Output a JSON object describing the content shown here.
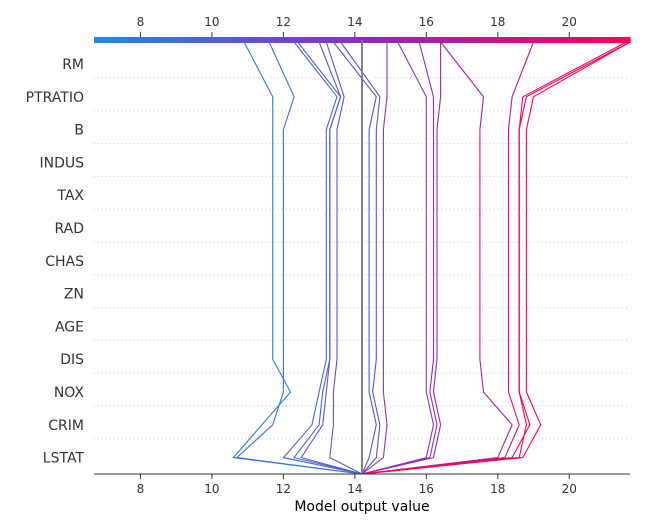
{
  "chart_data": {
    "type": "line",
    "chart_kind": "decision-plot",
    "xlabel": "Model output value",
    "xlim": [
      6.7,
      21.7
    ],
    "x_ticks": [
      8,
      10,
      12,
      14,
      16,
      18,
      20
    ],
    "base_value": 14.2,
    "features_top_to_bottom": [
      "RM",
      "PTRATIO",
      "B",
      "INDUS",
      "TAX",
      "RAD",
      "CHAS",
      "ZN",
      "AGE",
      "DIS",
      "NOX",
      "CRIM",
      "LSTAT"
    ],
    "color_scale": {
      "low": "#1e88e5",
      "mid": "#8d2bbf",
      "high": "#ff0052"
    },
    "grid": "dotted-horizontal",
    "line_color": "#808080",
    "series": [
      {
        "values": [
          14.2,
          10.6,
          11.4,
          12.2,
          11.7,
          11.7,
          11.7,
          11.7,
          11.7,
          11.7,
          11.7,
          11.7,
          11.7,
          10.9
        ]
      },
      {
        "values": [
          14.2,
          10.7,
          11.7,
          12.0,
          12.0,
          12.0,
          12.0,
          12.0,
          12.0,
          12.0,
          12.0,
          12.0,
          12.3,
          11.6
        ]
      },
      {
        "values": [
          14.2,
          12.0,
          12.8,
          13.0,
          13.2,
          13.2,
          13.2,
          13.2,
          13.2,
          13.2,
          13.2,
          13.2,
          13.5,
          12.3
        ]
      },
      {
        "values": [
          14.2,
          12.3,
          13.0,
          13.1,
          13.3,
          13.3,
          13.3,
          13.3,
          13.3,
          13.3,
          13.3,
          13.3,
          13.6,
          12.4
        ]
      },
      {
        "values": [
          14.2,
          12.5,
          13.1,
          13.2,
          13.3,
          13.3,
          13.3,
          13.3,
          13.3,
          13.3,
          13.3,
          13.3,
          13.6,
          13.0
        ]
      },
      {
        "values": [
          14.2,
          13.3,
          13.4,
          13.4,
          13.5,
          13.5,
          13.5,
          13.5,
          13.5,
          13.5,
          13.5,
          13.5,
          13.7,
          13.2
        ]
      },
      {
        "values": [
          14.2,
          14.4,
          14.6,
          14.4,
          14.4,
          14.4,
          14.4,
          14.4,
          14.4,
          14.4,
          14.4,
          14.4,
          14.6,
          13.4
        ]
      },
      {
        "values": [
          14.2,
          14.6,
          14.7,
          14.5,
          14.6,
          14.6,
          14.6,
          14.6,
          14.6,
          14.6,
          14.6,
          14.6,
          14.7,
          13.6
        ]
      },
      {
        "values": [
          14.2,
          14.8,
          14.9,
          14.8,
          14.8,
          14.8,
          14.8,
          14.8,
          14.8,
          14.8,
          14.8,
          14.8,
          14.9,
          14.9
        ]
      },
      {
        "values": [
          14.2,
          16.0,
          16.2,
          16.0,
          16.0,
          16.0,
          16.0,
          16.0,
          16.0,
          16.0,
          16.0,
          16.0,
          16.0,
          15.2
        ]
      },
      {
        "values": [
          14.2,
          16.1,
          16.3,
          16.1,
          16.2,
          16.2,
          16.2,
          16.2,
          16.2,
          16.2,
          16.2,
          16.2,
          16.2,
          15.8
        ]
      },
      {
        "values": [
          14.2,
          16.2,
          16.4,
          16.2,
          16.3,
          16.3,
          16.3,
          16.3,
          16.3,
          16.3,
          16.3,
          16.3,
          16.4,
          16.4
        ]
      },
      {
        "values": [
          14.2,
          18.0,
          18.4,
          17.6,
          17.5,
          17.5,
          17.5,
          17.5,
          17.5,
          17.5,
          17.5,
          17.5,
          17.6,
          16.4
        ]
      },
      {
        "values": [
          14.2,
          18.2,
          18.6,
          18.3,
          18.3,
          18.3,
          18.3,
          18.3,
          18.3,
          18.3,
          18.3,
          18.3,
          18.4,
          19.0
        ]
      },
      {
        "values": [
          14.2,
          18.4,
          18.9,
          18.6,
          18.6,
          18.6,
          18.6,
          18.6,
          18.6,
          18.6,
          18.6,
          18.6,
          18.7,
          21.6
        ]
      },
      {
        "values": [
          14.2,
          18.7,
          19.2,
          18.8,
          18.8,
          18.8,
          18.8,
          18.8,
          18.8,
          18.8,
          18.8,
          18.8,
          19.0,
          21.7
        ]
      },
      {
        "values": [
          14.2,
          18.6,
          18.8,
          18.6,
          18.6,
          18.6,
          18.6,
          18.6,
          18.6,
          18.6,
          18.6,
          18.6,
          18.8,
          21.7
        ]
      }
    ]
  }
}
